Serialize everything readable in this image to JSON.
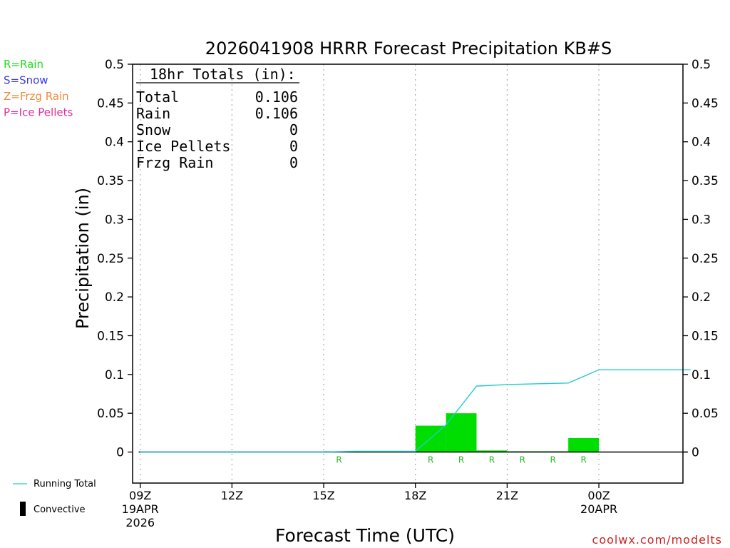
{
  "chart_data": {
    "type": "bar",
    "title": "2026041908 HRRR Forecast Precipitation KB#S",
    "xlabel": "Forecast Time (UTC)",
    "ylabel": "Precipitation (in)",
    "ylim": [
      -0.04,
      0.5
    ],
    "yticks": [
      "0",
      "0.05",
      "0.1",
      "0.15",
      "0.2",
      "0.25",
      "0.3",
      "0.35",
      "0.4",
      "0.45",
      "0.5"
    ],
    "xlim_hours": [
      -0.25,
      17.75
    ],
    "xticks": [
      {
        "hour": 0,
        "label": "09Z",
        "sublabel": "19APR",
        "sublabel2": "2026"
      },
      {
        "hour": 3,
        "label": "12Z",
        "sublabel": "",
        "sublabel2": ""
      },
      {
        "hour": 6,
        "label": "15Z",
        "sublabel": "",
        "sublabel2": ""
      },
      {
        "hour": 9,
        "label": "18Z",
        "sublabel": "",
        "sublabel2": ""
      },
      {
        "hour": 12,
        "label": "21Z",
        "sublabel": "",
        "sublabel2": ""
      },
      {
        "hour": 15,
        "label": "00Z",
        "sublabel": "20APR",
        "sublabel2": ""
      }
    ],
    "grid": true,
    "series": [
      {
        "name": "",
        "kind": "hourly",
        "x_hours": [
          1,
          2,
          3,
          4,
          5,
          6,
          7,
          8,
          9,
          10,
          11,
          12,
          13,
          14,
          15,
          16,
          17,
          18
        ],
        "values": [
          0,
          0,
          0,
          0,
          0,
          0,
          0.001,
          0,
          0,
          0.034,
          0.05,
          0.002,
          0.001,
          0.001,
          0.018,
          0,
          0,
          0
        ],
        "type_codes": [
          "",
          "",
          "",
          "",
          "",
          "",
          "R",
          "",
          "",
          "R",
          "R",
          "R",
          "R",
          "R",
          "R",
          "",
          "",
          ""
        ]
      },
      {
        "name": "Running Total",
        "kind": "line",
        "x_hours": [
          0,
          1,
          2,
          3,
          4,
          5,
          6,
          7,
          8,
          9,
          10,
          11,
          12,
          13,
          14,
          15,
          16,
          17,
          18
        ],
        "values": [
          0,
          0,
          0,
          0,
          0,
          0,
          0,
          0.001,
          0.001,
          0.001,
          0.035,
          0.085,
          0.087,
          0.088,
          0.089,
          0.106,
          0.106,
          0.106,
          0.106
        ]
      }
    ],
    "totals": {
      "heading": "18hr Totals (in):",
      "rows": [
        {
          "label": "Total",
          "value": "0.106"
        },
        {
          "label": "Rain",
          "value": "0.106"
        },
        {
          "label": "Snow",
          "value": "0"
        },
        {
          "label": "Ice Pellets",
          "value": "0"
        },
        {
          "label": "Frzg Rain",
          "value": "0"
        }
      ]
    },
    "type_legend": [
      {
        "text": "R=Rain",
        "color": "#22dd22"
      },
      {
        "text": "S=Snow",
        "color": "#3a3ae6"
      },
      {
        "text": "Z=Frzg Rain",
        "color": "#f08a3c"
      },
      {
        "text": "P=Ice Pellets",
        "color": "#e02f9a"
      }
    ],
    "bottom_legend": {
      "running_total": "Running Total",
      "convective": "Convective"
    },
    "colors": {
      "rain_bar": "#00dd00",
      "rain_code": "#22bb22",
      "running_total": "#22cccc",
      "grid": "#aaaaaa",
      "convective": "#000000"
    }
  },
  "credit": "coolwx.com/modelts"
}
